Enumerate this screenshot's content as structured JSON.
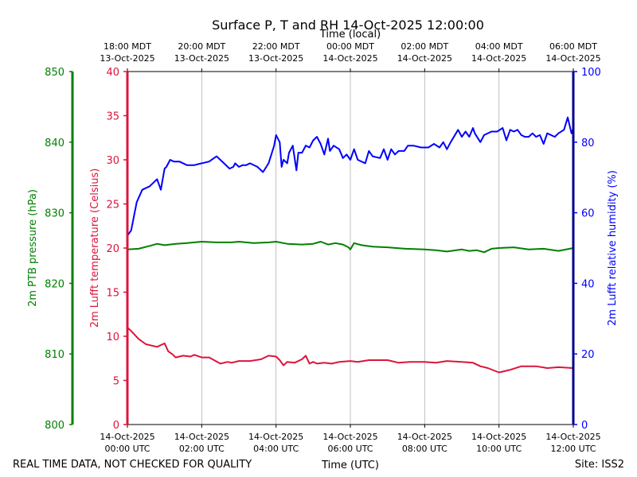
{
  "chart_data": {
    "type": "line",
    "title": "Surface P, T and RH 14-Oct-2025 12:00:00",
    "top_axis_title": "Time (local)",
    "bottom_axis_title": "Time (UTC)",
    "footer_left": "REAL TIME DATA, NOT CHECKED FOR QUALITY",
    "footer_right": "Site: ISS2",
    "x_range_hours": [
      0,
      12
    ],
    "grid": "vertical",
    "bottom_ticks": [
      {
        "h": 0,
        "line1": "14-Oct-2025",
        "line2": "00:00 UTC"
      },
      {
        "h": 2,
        "line1": "14-Oct-2025",
        "line2": "02:00 UTC"
      },
      {
        "h": 4,
        "line1": "14-Oct-2025",
        "line2": "04:00 UTC"
      },
      {
        "h": 6,
        "line1": "14-Oct-2025",
        "line2": "06:00 UTC"
      },
      {
        "h": 8,
        "line1": "14-Oct-2025",
        "line2": "08:00 UTC"
      },
      {
        "h": 10,
        "line1": "14-Oct-2025",
        "line2": "10:00 UTC"
      },
      {
        "h": 12,
        "line1": "14-Oct-2025",
        "line2": "12:00 UTC"
      }
    ],
    "top_ticks": [
      {
        "h": 0,
        "line1": "18:00 MDT",
        "line2": "13-Oct-2025"
      },
      {
        "h": 2,
        "line1": "20:00 MDT",
        "line2": "13-Oct-2025"
      },
      {
        "h": 4,
        "line1": "22:00 MDT",
        "line2": "13-Oct-2025"
      },
      {
        "h": 6,
        "line1": "00:00 MDT",
        "line2": "14-Oct-2025"
      },
      {
        "h": 8,
        "line1": "02:00 MDT",
        "line2": "14-Oct-2025"
      },
      {
        "h": 10,
        "line1": "04:00 MDT",
        "line2": "14-Oct-2025"
      },
      {
        "h": 12,
        "line1": "06:00 MDT",
        "line2": "14-Oct-2025"
      }
    ],
    "axes": {
      "pressure": {
        "label": "2m PTB pressure (hPa)",
        "color": "#008000",
        "ylim": [
          800,
          850
        ],
        "ticks": [
          800,
          810,
          820,
          830,
          840,
          850
        ]
      },
      "temperature": {
        "label": "2m Lufft temperature (Celsius)",
        "color": "#dc143c",
        "ylim": [
          0,
          40
        ],
        "ticks": [
          0,
          5,
          10,
          15,
          20,
          25,
          30,
          35,
          40
        ]
      },
      "humidity": {
        "label": "2m Lufft relative humidity (%)",
        "color": "#0000ff",
        "ylim": [
          0,
          100
        ],
        "ticks": [
          0,
          20,
          40,
          60,
          80,
          100
        ]
      }
    },
    "series": [
      {
        "name": "2m Lufft relative humidity",
        "axis": "humidity",
        "color": "#0000ff",
        "x": [
          0.0,
          0.1,
          0.25,
          0.4,
          0.6,
          0.8,
          0.9,
          1.0,
          1.05,
          1.15,
          1.25,
          1.4,
          1.6,
          1.8,
          2.0,
          2.2,
          2.4,
          2.6,
          2.75,
          2.85,
          2.9,
          3.0,
          3.1,
          3.2,
          3.3,
          3.5,
          3.65,
          3.8,
          3.95,
          4.0,
          4.1,
          4.15,
          4.2,
          4.3,
          4.35,
          4.45,
          4.55,
          4.6,
          4.7,
          4.8,
          4.9,
          5.0,
          5.1,
          5.2,
          5.3,
          5.4,
          5.45,
          5.55,
          5.7,
          5.8,
          5.9,
          6.0,
          6.1,
          6.2,
          6.3,
          6.4,
          6.5,
          6.6,
          6.8,
          6.9,
          7.0,
          7.1,
          7.2,
          7.3,
          7.45,
          7.55,
          7.7,
          7.9,
          8.0,
          8.1,
          8.25,
          8.4,
          8.5,
          8.6,
          8.7,
          8.9,
          9.0,
          9.1,
          9.2,
          9.3,
          9.35,
          9.5,
          9.6,
          9.8,
          9.95,
          10.1,
          10.2,
          10.3,
          10.4,
          10.5,
          10.6,
          10.7,
          10.8,
          10.9,
          11.0,
          11.1,
          11.2,
          11.3,
          11.5,
          11.6,
          11.75,
          11.85,
          11.95,
          12.0
        ],
        "values": [
          53.5,
          55,
          63,
          66.5,
          67.5,
          69.5,
          66.5,
          72.5,
          73,
          75,
          74.5,
          74.5,
          73.5,
          73.5,
          74,
          74.5,
          76,
          74,
          72.5,
          73,
          74,
          73,
          73.5,
          73.5,
          74,
          73,
          71.5,
          74,
          79,
          82,
          80,
          73,
          75,
          74,
          77,
          79,
          72,
          77,
          77,
          79,
          78.5,
          80.5,
          81.5,
          79.5,
          76.5,
          81,
          77.5,
          79,
          78,
          75.5,
          76.5,
          75,
          78,
          75,
          74.5,
          74,
          77.5,
          76,
          75.5,
          78,
          75,
          78,
          76.5,
          77.5,
          77.5,
          79,
          79,
          78.5,
          78.5,
          78.5,
          79.5,
          78.5,
          80,
          78,
          80,
          83.5,
          81.5,
          83,
          81.5,
          84,
          82.5,
          80,
          82,
          83,
          83,
          84,
          80.5,
          83.5,
          83,
          83.5,
          82,
          81.5,
          81.5,
          82.5,
          81.5,
          82,
          79.5,
          82.5,
          81.5,
          82.5,
          83.5,
          87,
          82.5,
          84
        ]
      },
      {
        "name": "2m PTB pressure",
        "axis": "pressure",
        "color": "#008000",
        "x": [
          0.0,
          0.3,
          0.6,
          0.8,
          1.0,
          1.3,
          1.6,
          2.0,
          2.4,
          2.8,
          3.0,
          3.4,
          3.8,
          4.0,
          4.3,
          4.7,
          5.0,
          5.2,
          5.4,
          5.6,
          5.8,
          5.95,
          6.0,
          6.1,
          6.3,
          6.6,
          7.0,
          7.5,
          8.0,
          8.3,
          8.6,
          9.0,
          9.2,
          9.4,
          9.6,
          9.8,
          10.0,
          10.4,
          10.8,
          11.2,
          11.6,
          12.0
        ],
        "values": [
          824.8,
          824.9,
          825.3,
          825.6,
          825.4,
          825.6,
          825.7,
          825.9,
          825.8,
          825.8,
          825.9,
          825.7,
          825.8,
          825.9,
          825.6,
          825.5,
          825.6,
          825.9,
          825.5,
          825.7,
          825.5,
          825.1,
          824.8,
          825.7,
          825.4,
          825.2,
          825.1,
          824.9,
          824.8,
          824.7,
          824.5,
          824.8,
          824.6,
          824.7,
          824.4,
          824.9,
          825.0,
          825.1,
          824.8,
          824.9,
          824.6,
          825.0
        ]
      },
      {
        "name": "2m Lufft temperature",
        "axis": "temperature",
        "color": "#dc143c",
        "x": [
          0.0,
          0.1,
          0.3,
          0.5,
          0.8,
          1.0,
          1.1,
          1.2,
          1.3,
          1.5,
          1.7,
          1.8,
          2.0,
          2.2,
          2.5,
          2.7,
          2.8,
          3.0,
          3.3,
          3.6,
          3.8,
          4.0,
          4.1,
          4.2,
          4.3,
          4.5,
          4.7,
          4.8,
          4.9,
          5.0,
          5.1,
          5.3,
          5.5,
          5.7,
          6.0,
          6.2,
          6.5,
          6.8,
          7.0,
          7.3,
          7.6,
          7.8,
          8.0,
          8.3,
          8.6,
          9.0,
          9.3,
          9.5,
          9.7,
          10.0,
          10.3,
          10.6,
          11.0,
          11.3,
          11.6,
          12.0
        ],
        "values": [
          11.0,
          10.6,
          9.7,
          9.1,
          8.8,
          9.2,
          8.3,
          8.0,
          7.6,
          7.8,
          7.7,
          7.9,
          7.6,
          7.6,
          6.9,
          7.1,
          7.0,
          7.2,
          7.2,
          7.4,
          7.8,
          7.7,
          7.3,
          6.7,
          7.1,
          7.0,
          7.4,
          7.8,
          6.9,
          7.1,
          6.9,
          7.0,
          6.9,
          7.1,
          7.2,
          7.1,
          7.3,
          7.3,
          7.3,
          7.0,
          7.1,
          7.1,
          7.1,
          7.0,
          7.2,
          7.1,
          7.0,
          6.6,
          6.4,
          5.9,
          6.2,
          6.6,
          6.6,
          6.4,
          6.5,
          6.4
        ]
      }
    ]
  }
}
